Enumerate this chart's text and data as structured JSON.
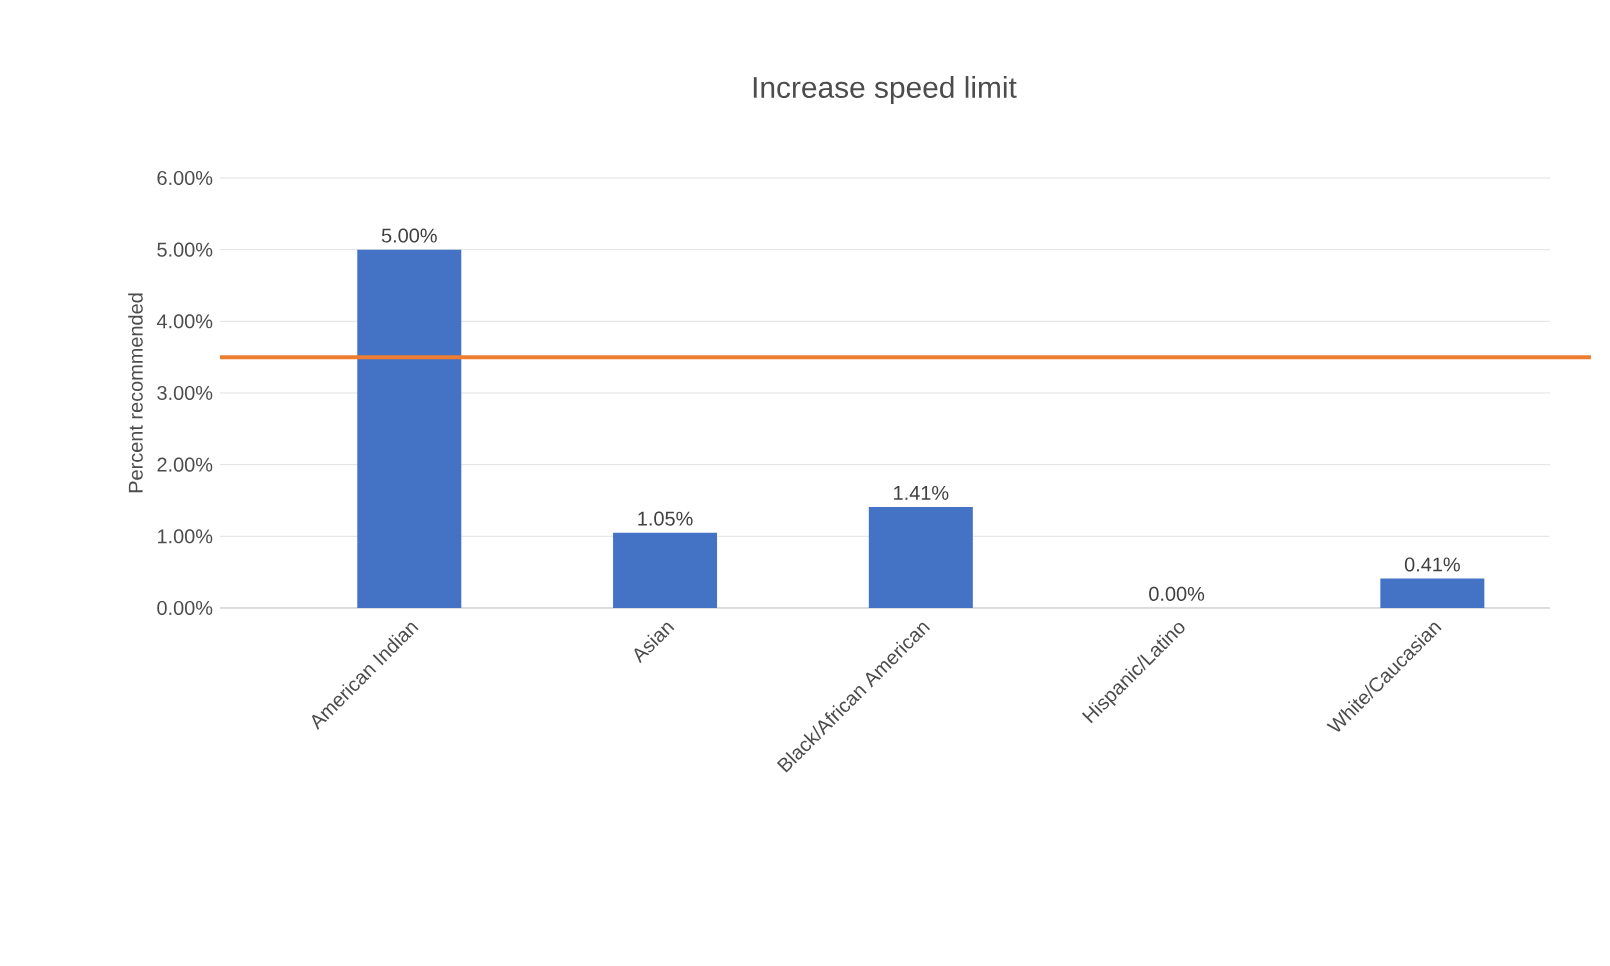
{
  "chart_data": {
    "type": "bar",
    "title": "Increase speed limit",
    "ylabel": "Percent recommended",
    "categories": [
      "American Indian",
      "Asian",
      "Black/African American",
      "Hispanic/Latino",
      "White/Caucasian"
    ],
    "values": [
      5.0,
      1.05,
      1.41,
      0.0,
      0.41
    ],
    "value_labels": [
      "5.00%",
      "1.05%",
      "1.41%",
      "0.00%",
      "0.41%"
    ],
    "color": "#4472c4",
    "ylim": [
      0,
      6
    ],
    "yticks": [
      {
        "value": 0,
        "label": "0.00%"
      },
      {
        "value": 1,
        "label": "1.00%"
      },
      {
        "value": 2,
        "label": "2.00%"
      },
      {
        "value": 3,
        "label": "3.00%"
      },
      {
        "value": 4,
        "label": "4.00%"
      },
      {
        "value": 5,
        "label": "5.00%"
      },
      {
        "value": 6,
        "label": "6.00%"
      }
    ],
    "grid": "y",
    "ref_lines": [
      {
        "axis": "y",
        "value": 3.5,
        "color": "#ed7d31"
      }
    ]
  }
}
